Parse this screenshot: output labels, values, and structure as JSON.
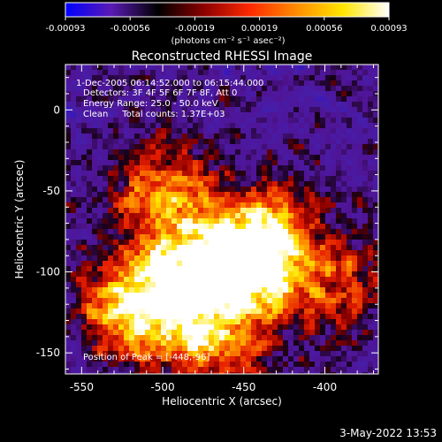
{
  "chart_data": {
    "type": "heatmap",
    "title": "Reconstructed RHESSI Image",
    "xlabel": "Heliocentric X (arcsec)",
    "ylabel": "Heliocentric Y (arcsec)",
    "xlim": [
      -560,
      -367
    ],
    "ylim": [
      -163,
      28
    ],
    "x_ticks": [
      -550,
      -500,
      -450,
      -400
    ],
    "y_ticks": [
      0,
      -50,
      -100,
      -150
    ],
    "colorbar": {
      "min": -0.00093,
      "max": 0.00093,
      "ticks": [
        "-0.00093",
        "-0.00056",
        "-0.00019",
        "0.00019",
        "0.00056",
        "0.00093"
      ],
      "units_label": "(photons cm⁻² s⁻¹ asec⁻²)",
      "colors": [
        "#0000ff",
        "#5a1ab4",
        "#000000",
        "#8c0000",
        "#ff2a00",
        "#ff8c00",
        "#ffe600",
        "#ffffff"
      ]
    },
    "annotations": [
      "1-Dec-2005 06:14:52.000 to 06:15:44.000",
      "Detectors: 3F 4F 5F 6F 7F 8F, Att 0",
      "Energy Range: 25.0 - 50.0 keV",
      "Clean     Total counts: 1.37E+03"
    ],
    "peak_label": "Position of Peak = [-448,-96]",
    "peak": [
      -448,
      -96
    ],
    "bright_sources": [
      {
        "x": -448,
        "y": -96,
        "peak": 1.0
      },
      {
        "x": -515,
        "y": -122,
        "peak": 0.9
      },
      {
        "x": -470,
        "y": -140,
        "peak": 0.6
      },
      {
        "x": -500,
        "y": -52,
        "peak": 0.6
      },
      {
        "x": -432,
        "y": -72,
        "peak": 0.45
      },
      {
        "x": -485,
        "y": -98,
        "peak": 0.55
      },
      {
        "x": -395,
        "y": -108,
        "peak": 0.4
      }
    ]
  },
  "footer": {
    "timestamp": "3-May-2022 13:53"
  }
}
